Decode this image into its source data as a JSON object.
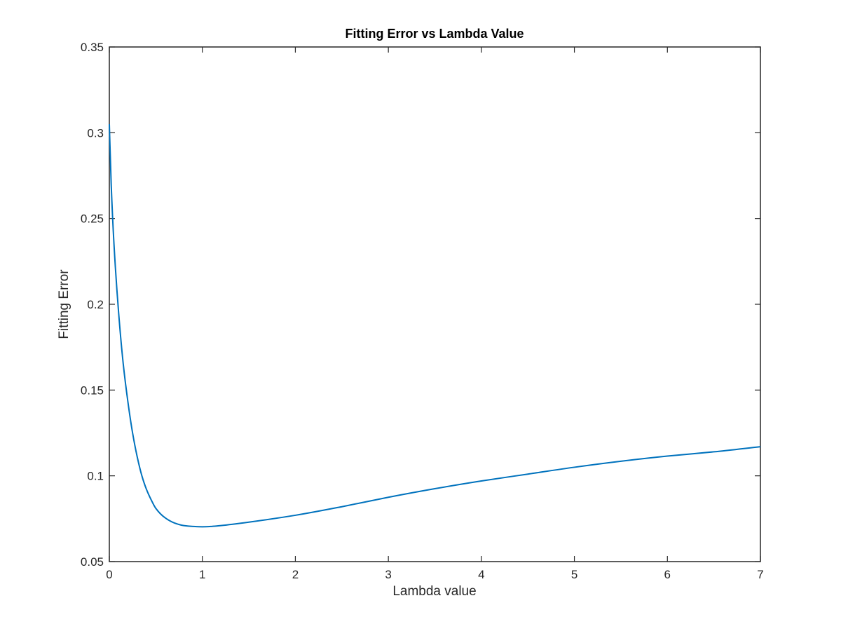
{
  "chart_data": {
    "type": "line",
    "title": "Fitting Error vs Lambda Value",
    "xlabel": "Lambda value",
    "ylabel": "Fitting Error",
    "xlim": [
      0,
      7
    ],
    "ylim": [
      0.05,
      0.35
    ],
    "xticks": [
      0,
      1,
      2,
      3,
      4,
      5,
      6,
      7
    ],
    "yticks": [
      0.05,
      0.1,
      0.15,
      0.2,
      0.25,
      0.3,
      0.35
    ],
    "xtick_labels": [
      "0",
      "1",
      "2",
      "3",
      "4",
      "5",
      "6",
      "7"
    ],
    "ytick_labels": [
      "0.05",
      "0.1",
      "0.15",
      "0.2",
      "0.25",
      "0.3",
      "0.35"
    ],
    "grid": false,
    "legend": "none",
    "series": [
      {
        "color": "#0072bd",
        "x": [
          0,
          0.02,
          0.05,
          0.1,
          0.15,
          0.2,
          0.25,
          0.3,
          0.35,
          0.4,
          0.45,
          0.5,
          0.6,
          0.7,
          0.8,
          0.9,
          1.0,
          1.1,
          1.2,
          1.5,
          2.0,
          2.5,
          3.0,
          3.5,
          4.0,
          4.5,
          5.0,
          5.5,
          6.0,
          6.5,
          7.0
        ],
        "y": [
          0.305,
          0.27,
          0.235,
          0.195,
          0.165,
          0.143,
          0.125,
          0.111,
          0.1,
          0.092,
          0.086,
          0.081,
          0.0755,
          0.0725,
          0.071,
          0.0705,
          0.0703,
          0.0705,
          0.071,
          0.073,
          0.077,
          0.082,
          0.0875,
          0.0925,
          0.097,
          0.101,
          0.105,
          0.1085,
          0.1115,
          0.114,
          0.117
        ]
      }
    ]
  }
}
